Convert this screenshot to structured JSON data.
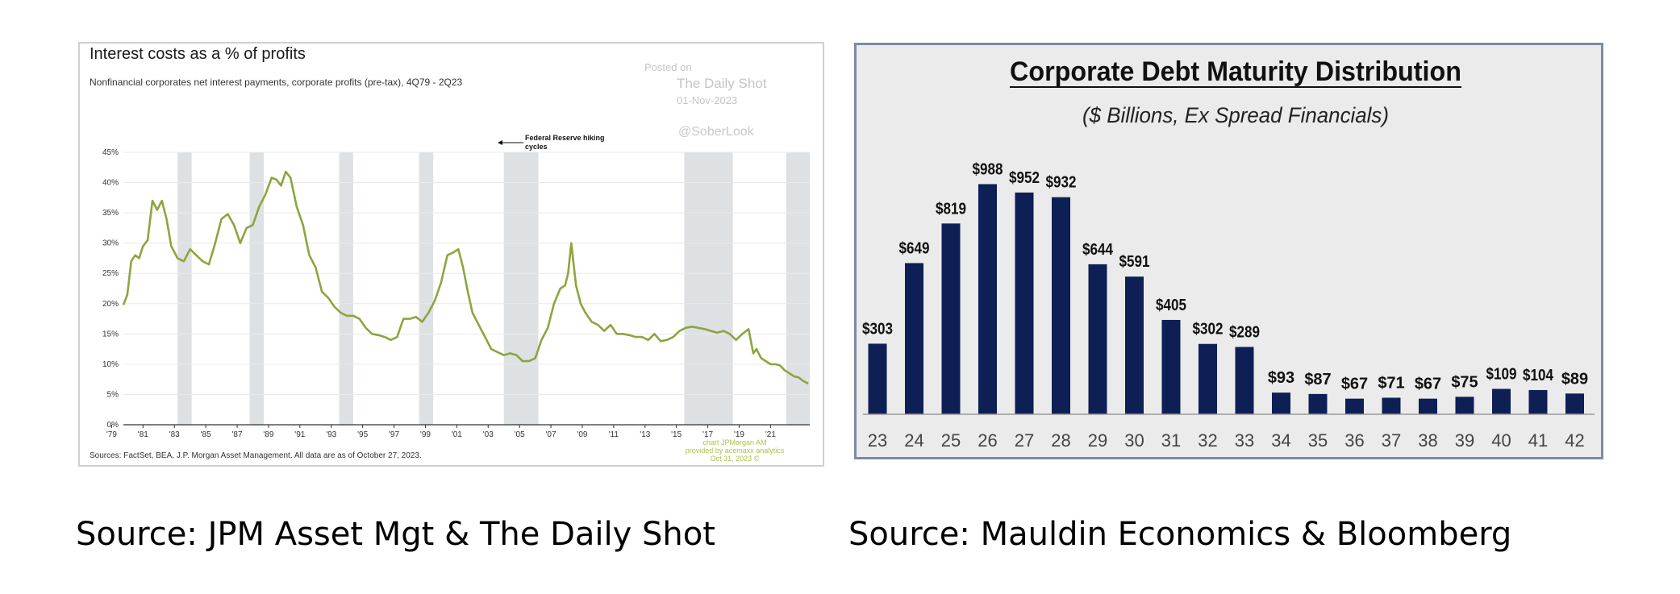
{
  "captions": {
    "left": "Source: JPM Asset Mgt & The Daily Shot",
    "right": "Source: Mauldin Economics & Bloomberg"
  },
  "chart_data": [
    {
      "type": "line",
      "title": "Interest costs as a % of profits",
      "subtitle": "Nonfinancial corporates net interest payments, corporate profits (pre-tax), 4Q79 - 2Q23",
      "watermark": {
        "posted_on": "Posted on",
        "source": "The Daily Shot",
        "date": "01-Nov-2023",
        "handle": "@SoberLook"
      },
      "annotation": "Federal Reserve hiking cycles",
      "footer": "Sources: FactSet, BEA, J.P. Morgan Asset Management. All data are as of October 27, 2023.",
      "credit": [
        "chart JPMorgan AM",
        "provided by acemaxx analytics",
        "Oct 31, 2023 ©"
      ],
      "x_ticks": [
        "'79",
        "'81",
        "'83",
        "'85",
        "'87",
        "'89",
        "'91",
        "'93",
        "'95",
        "'97",
        "'99",
        "'01",
        "'03",
        "'05",
        "'07",
        "'09",
        "'11",
        "'13",
        "'15",
        "'17",
        "'19",
        "'21"
      ],
      "y_ticks": [
        "0%",
        "5%",
        "10%",
        "15%",
        "20%",
        "25%",
        "30%",
        "35%",
        "40%",
        "45%"
      ],
      "xlim": [
        1979.75,
        2023.5
      ],
      "ylim": [
        0,
        45
      ],
      "grid": true,
      "color": "#8ca53f",
      "shade_color": "#dde1e3",
      "shaded_periods": [
        [
          1983.2,
          1984.1
        ],
        [
          1987.8,
          1988.7
        ],
        [
          1993.5,
          1994.4
        ],
        [
          1998.6,
          1999.5
        ],
        [
          2004.0,
          2006.2
        ],
        [
          2015.5,
          2018.6
        ],
        [
          2022.0,
          2023.5
        ]
      ],
      "series": [
        {
          "x": [
            1979.75,
            1980.0,
            1980.25,
            1980.5,
            1980.75,
            1981.0,
            1981.3,
            1981.6,
            1981.9,
            1982.2,
            1982.5,
            1982.8,
            1983.2,
            1983.6,
            1984.0,
            1984.4,
            1984.8,
            1985.2,
            1985.6,
            1986.0,
            1986.4,
            1986.8,
            1987.2,
            1987.6,
            1988.0,
            1988.4,
            1988.8,
            1989.2,
            1989.5,
            1989.8,
            1990.1,
            1990.4,
            1990.8,
            1991.2,
            1991.6,
            1992.0,
            1992.4,
            1992.8,
            1993.2,
            1993.6,
            1994.0,
            1994.4,
            1994.8,
            1995.2,
            1995.6,
            1996.0,
            1996.4,
            1996.8,
            1997.2,
            1997.6,
            1998.0,
            1998.4,
            1998.8,
            1999.2,
            1999.6,
            2000.0,
            2000.4,
            2000.8,
            2001.1,
            2001.4,
            2001.7,
            2002.0,
            2002.4,
            2002.8,
            2003.2,
            2003.6,
            2004.0,
            2004.4,
            2004.8,
            2005.2,
            2005.6,
            2006.0,
            2006.4,
            2006.8,
            2007.2,
            2007.6,
            2007.9,
            2008.1,
            2008.3,
            2008.6,
            2008.9,
            2009.2,
            2009.6,
            2010.0,
            2010.4,
            2010.8,
            2011.2,
            2011.6,
            2012.0,
            2012.4,
            2012.8,
            2013.2,
            2013.6,
            2014.0,
            2014.4,
            2014.8,
            2015.2,
            2015.6,
            2016.0,
            2016.4,
            2016.8,
            2017.2,
            2017.6,
            2018.0,
            2018.4,
            2018.8,
            2019.2,
            2019.6,
            2019.9,
            2020.1,
            2020.4,
            2020.7,
            2021.0,
            2021.3,
            2021.6,
            2021.9,
            2022.2,
            2022.5,
            2022.8,
            2023.1,
            2023.4
          ],
          "y": [
            19.8,
            21.5,
            27.0,
            28.0,
            27.5,
            29.5,
            30.5,
            37.0,
            35.5,
            37.0,
            34.0,
            29.5,
            27.5,
            27.0,
            29.0,
            28.0,
            27.0,
            26.5,
            30.0,
            34.0,
            34.8,
            33.0,
            30.0,
            32.5,
            33.0,
            36.0,
            38.0,
            40.8,
            40.5,
            39.5,
            41.8,
            40.8,
            36.0,
            33.0,
            28.0,
            26.0,
            22.0,
            21.0,
            19.5,
            18.5,
            18.0,
            18.0,
            17.5,
            16.0,
            15.0,
            14.8,
            14.5,
            14.0,
            14.5,
            17.5,
            17.5,
            17.8,
            17.0,
            18.5,
            20.5,
            23.5,
            28.0,
            28.5,
            29.0,
            26.0,
            22.0,
            18.5,
            16.5,
            14.5,
            12.5,
            12.0,
            11.5,
            11.8,
            11.5,
            10.5,
            10.5,
            11.0,
            14.0,
            16.0,
            20.0,
            22.5,
            23.0,
            25.0,
            30.0,
            23.0,
            20.0,
            18.5,
            17.0,
            16.5,
            15.5,
            16.5,
            15.0,
            15.0,
            14.8,
            14.5,
            14.5,
            14.0,
            15.0,
            13.8,
            14.0,
            14.5,
            15.5,
            16.0,
            16.2,
            16.0,
            15.8,
            15.5,
            15.2,
            15.5,
            15.0,
            14.0,
            15.0,
            15.8,
            11.8,
            12.5,
            11.0,
            10.5,
            10.0,
            10.0,
            9.8,
            9.0,
            8.5,
            8.0,
            7.8,
            7.2,
            6.8
          ]
        }
      ]
    },
    {
      "type": "bar",
      "title": "Corporate Debt Maturity Distribution",
      "subtitle": "($ Billions, Ex Spread Financials)",
      "categories": [
        "23",
        "24",
        "25",
        "26",
        "27",
        "28",
        "29",
        "30",
        "31",
        "32",
        "33",
        "34",
        "35",
        "36",
        "37",
        "38",
        "39",
        "40",
        "41",
        "42"
      ],
      "values": [
        303,
        649,
        819,
        988,
        952,
        932,
        644,
        591,
        405,
        302,
        289,
        93,
        87,
        67,
        71,
        67,
        75,
        109,
        104,
        89
      ],
      "data_labels": [
        "$303",
        "$649",
        "$819",
        "$988",
        "$952",
        "$932",
        "$644",
        "$591",
        "$405",
        "$302",
        "$289",
        "$93",
        "$87",
        "$67",
        "$71",
        "$67",
        "$75",
        "$109",
        "$104",
        "$89"
      ],
      "ylim": [
        0,
        1000
      ],
      "color": "#0d1f54",
      "grid": false
    }
  ]
}
